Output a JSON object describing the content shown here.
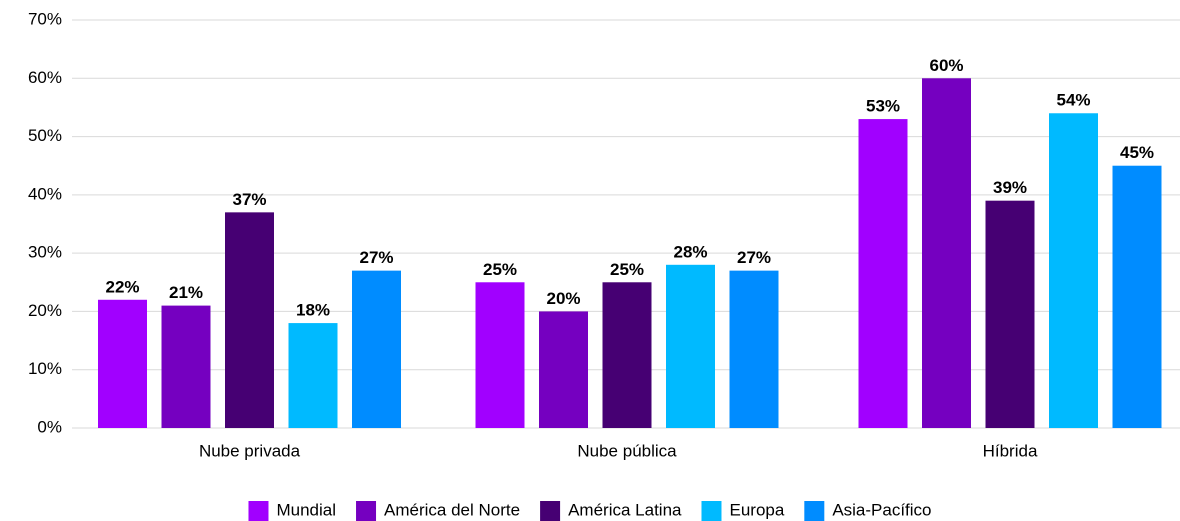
{
  "chart_data": {
    "type": "bar",
    "categories": [
      "Nube privada",
      "Nube pública",
      "Híbrida"
    ],
    "series": [
      {
        "name": "Mundial",
        "color": "#a100ff",
        "values": [
          22,
          25,
          53
        ],
        "value_labels": [
          "22%",
          "25%",
          "53%"
        ]
      },
      {
        "name": "América del Norte",
        "color": "#7500c0",
        "values": [
          21,
          20,
          60
        ],
        "value_labels": [
          "21%",
          "20%",
          "60%"
        ]
      },
      {
        "name": "América Latina",
        "color": "#460073",
        "values": [
          37,
          25,
          39
        ],
        "value_labels": [
          "37%",
          "25%",
          "39%"
        ]
      },
      {
        "name": "Europa",
        "color": "#00baff",
        "values": [
          18,
          28,
          54
        ],
        "value_labels": [
          "18%",
          "28%",
          "54%"
        ]
      },
      {
        "name": "Asia-Pacífico",
        "color": "#008cff",
        "values": [
          27,
          27,
          45
        ],
        "value_labels": [
          "27%",
          "27%",
          "45%"
        ]
      }
    ],
    "ylim": [
      0,
      70
    ],
    "yticks": [
      {
        "value": 0,
        "label": "0%"
      },
      {
        "value": 10,
        "label": "10%"
      },
      {
        "value": 20,
        "label": "20%"
      },
      {
        "value": 30,
        "label": "30%"
      },
      {
        "value": 40,
        "label": "40%"
      },
      {
        "value": 50,
        "label": "50%"
      },
      {
        "value": 60,
        "label": "60%"
      },
      {
        "value": 70,
        "label": "70%"
      }
    ],
    "grid": true,
    "legend": "bottom"
  }
}
